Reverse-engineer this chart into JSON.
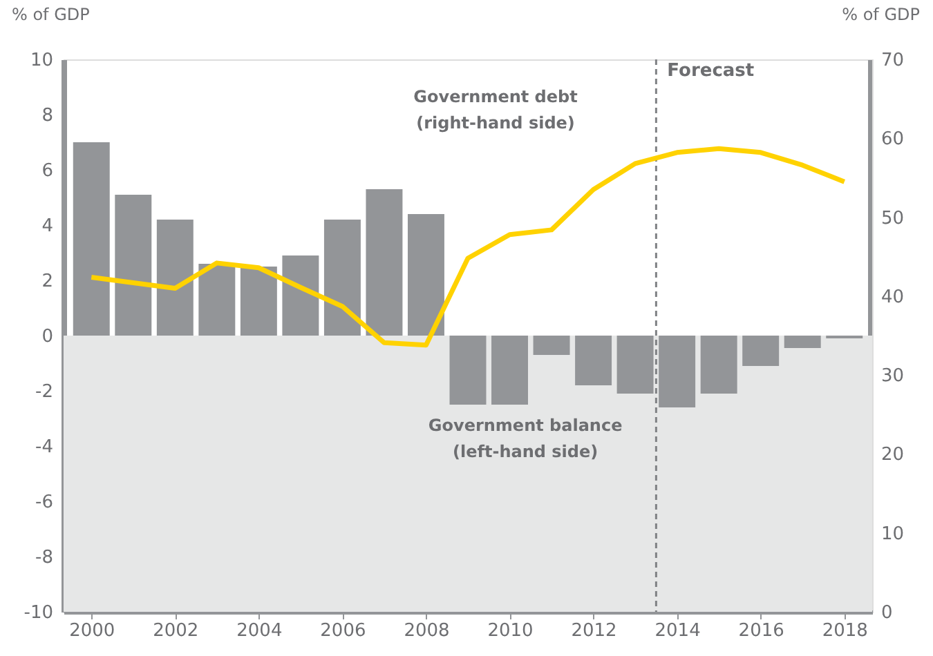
{
  "chart_data": {
    "type": "bar",
    "x": [
      2000,
      2001,
      2002,
      2003,
      2004,
      2005,
      2006,
      2007,
      2008,
      2009,
      2010,
      2011,
      2012,
      2013,
      2014,
      2015,
      2016,
      2017,
      2018
    ],
    "series": [
      {
        "color": "#939598",
        "values": [
          7.0,
          5.1,
          4.2,
          2.6,
          2.5,
          2.9,
          4.2,
          5.3,
          4.4,
          -2.5,
          -2.5,
          -0.7,
          -1.8,
          -2.1,
          -2.6,
          -2.1,
          -1.1,
          -0.45,
          -0.1
        ]
      },
      {
        "type": "line",
        "axis": "y2",
        "color": "#ffd200",
        "values": [
          42.4,
          41.7,
          41.0,
          44.2,
          43.6,
          41.1,
          38.7,
          34.1,
          33.8,
          44.8,
          47.8,
          48.4,
          53.5,
          56.8,
          58.2,
          58.7,
          58.2,
          56.6,
          54.5
        ]
      }
    ],
    "ylabel": "% of GDP",
    "y2label": "% of GDP",
    "xlim": [
      1999.5,
      2018.5
    ],
    "xticks": [
      2000,
      2002,
      2004,
      2006,
      2008,
      2010,
      2012,
      2014,
      2016,
      2018
    ],
    "ylim": [
      -10,
      10
    ],
    "yticks": [
      -10,
      -8,
      -6,
      -4,
      -2,
      0,
      2,
      4,
      6,
      8,
      10
    ],
    "y2lim": [
      0,
      70
    ],
    "y2ticks": [
      0,
      10,
      20,
      30,
      40,
      50,
      60,
      70
    ],
    "bands": [
      {
        "axis": "y",
        "from": -10,
        "to": 0,
        "color": "#e6e7e7"
      }
    ],
    "ref_lines": [
      {
        "axis": "x",
        "value": 2013.5,
        "label": "Forecast",
        "color": "#808285",
        "line_style": "dashed"
      }
    ],
    "annotations": [
      "Government debt\n(right-hand side)",
      "Government balance\n(left-hand side)"
    ],
    "grid": false
  }
}
